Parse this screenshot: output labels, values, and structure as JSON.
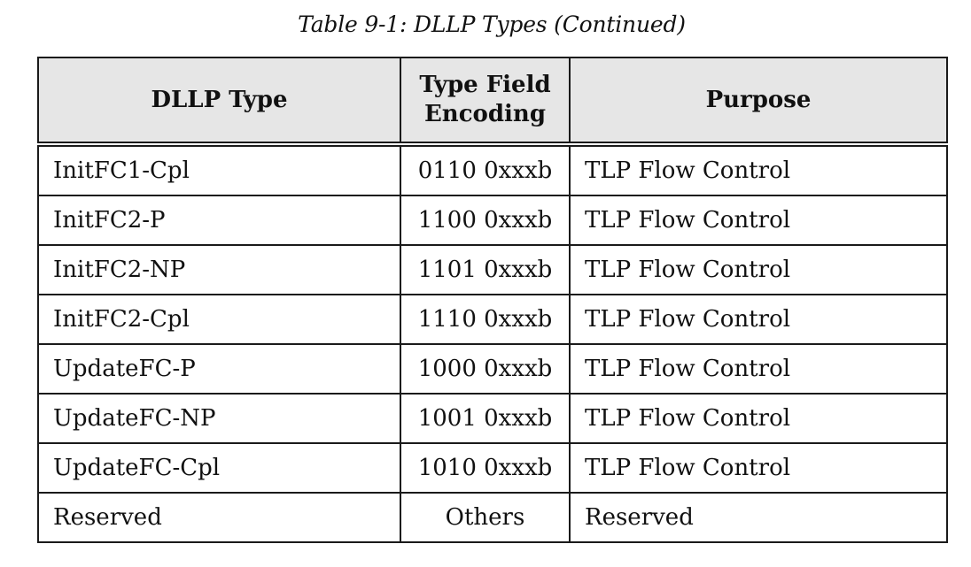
{
  "caption": "Table 9-1: DLLP Types (Continued)",
  "table": {
    "headers": {
      "type": "DLLP Type",
      "encoding_line1": "Type Field",
      "encoding_line2": "Encoding",
      "purpose": "Purpose"
    },
    "rows": [
      {
        "type": "InitFC1-Cpl",
        "encoding": "0110 0xxxb",
        "purpose": "TLP Flow Control"
      },
      {
        "type": "InitFC2-P",
        "encoding": "1100 0xxxb",
        "purpose": "TLP Flow Control"
      },
      {
        "type": "InitFC2-NP",
        "encoding": "1101 0xxxb",
        "purpose": "TLP Flow Control"
      },
      {
        "type": "InitFC2-Cpl",
        "encoding": "1110 0xxxb",
        "purpose": "TLP Flow Control"
      },
      {
        "type": "UpdateFC-P",
        "encoding": "1000 0xxxb",
        "purpose": "TLP Flow Control"
      },
      {
        "type": "UpdateFC-NP",
        "encoding": "1001 0xxxb",
        "purpose": "TLP Flow Control"
      },
      {
        "type": "UpdateFC-Cpl",
        "encoding": "1010 0xxxb",
        "purpose": "TLP Flow Control"
      },
      {
        "type": "Reserved",
        "encoding": "Others",
        "purpose": "Reserved"
      }
    ]
  }
}
